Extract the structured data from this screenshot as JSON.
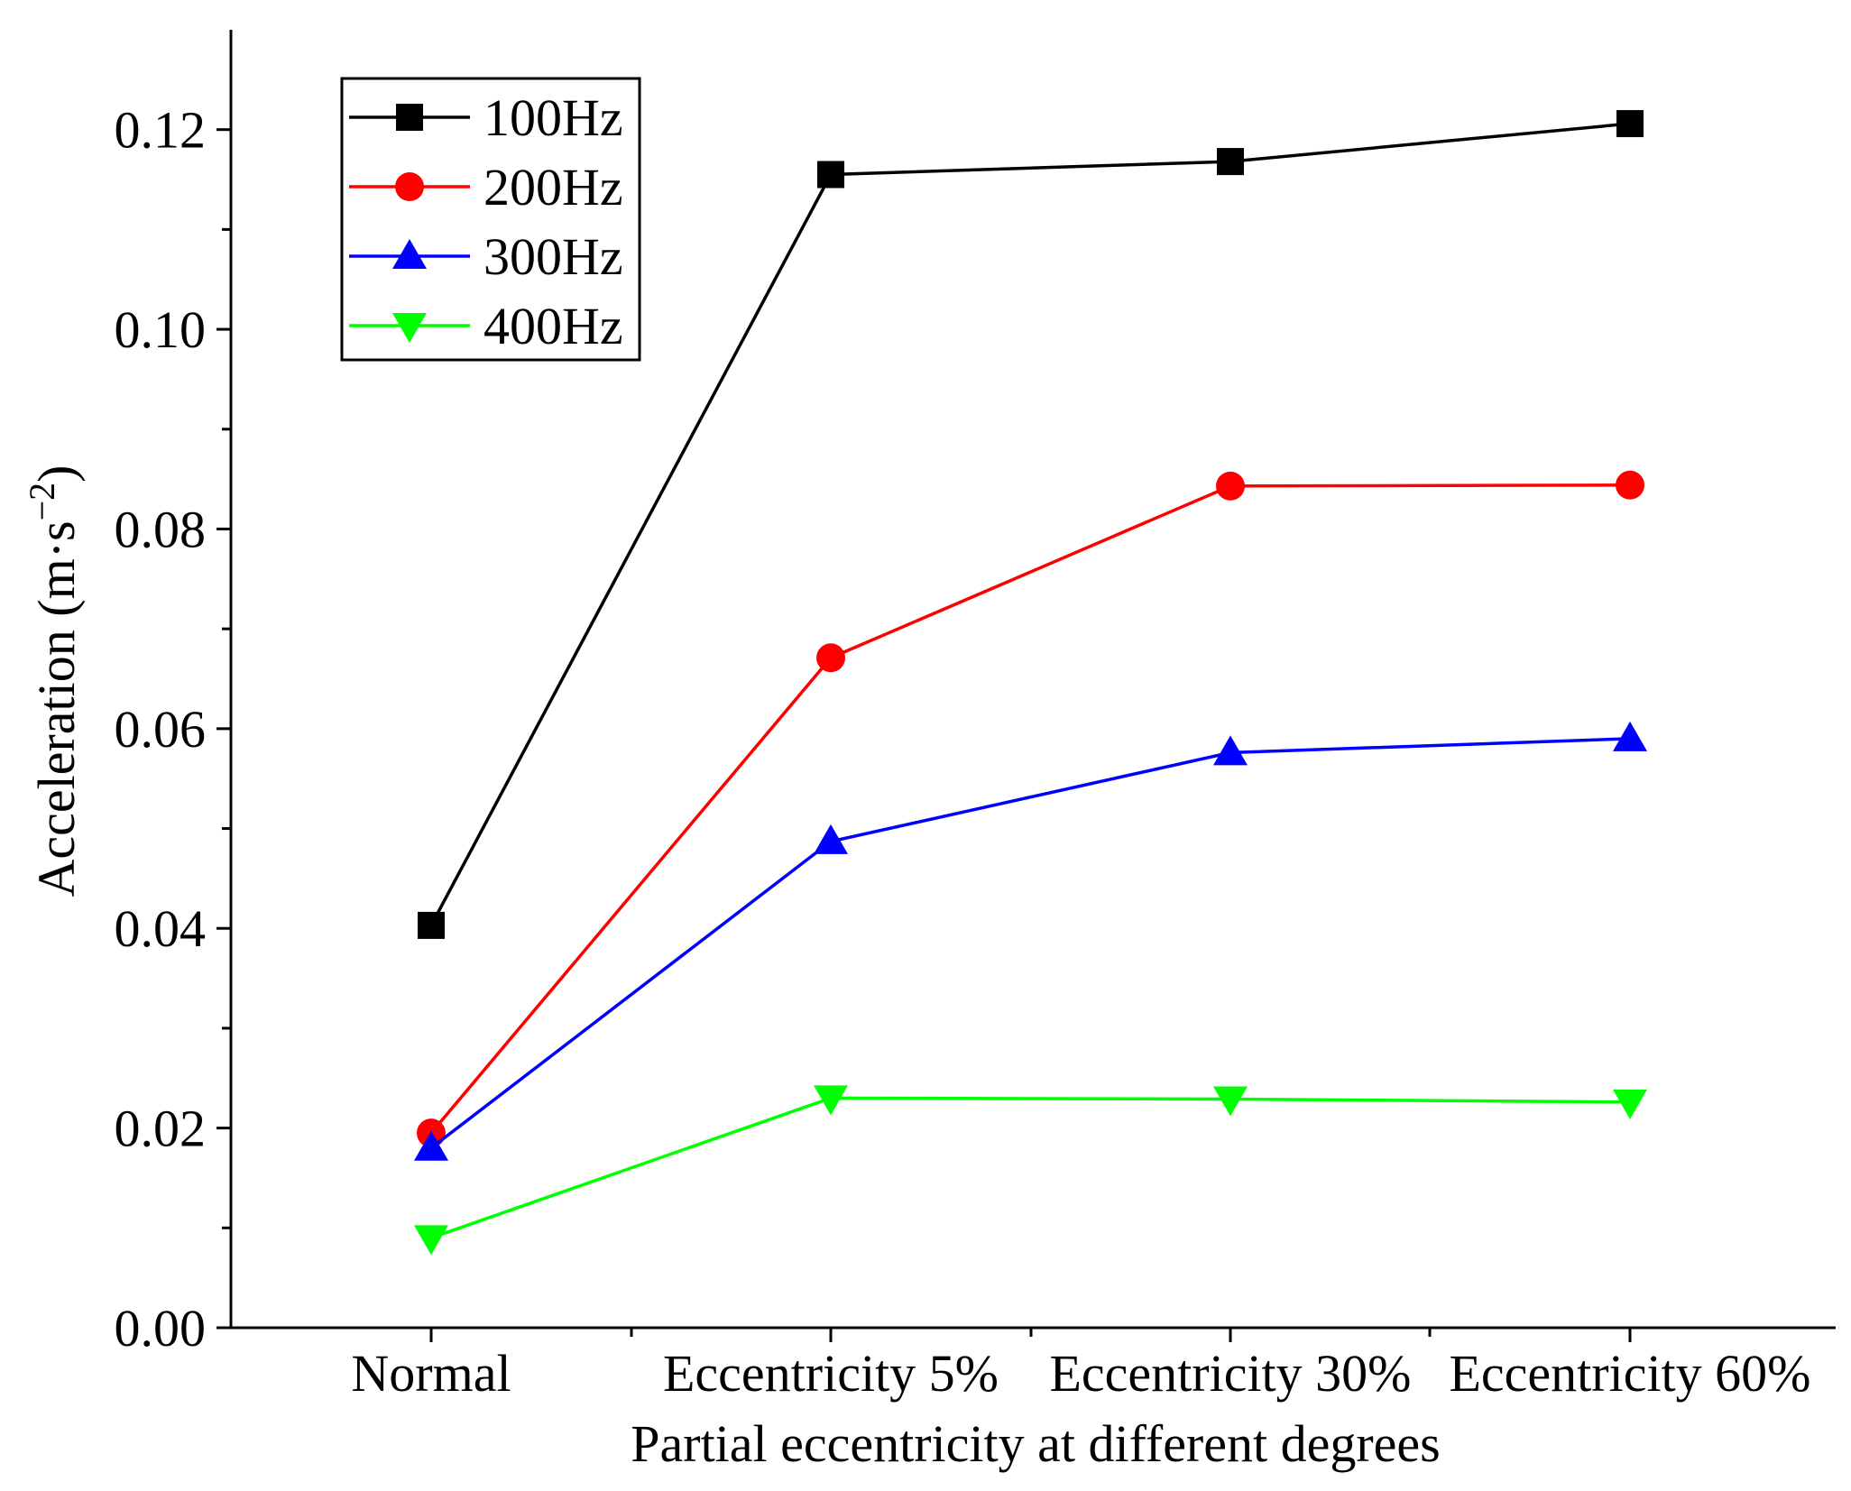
{
  "chart_data": {
    "type": "line",
    "title": "",
    "xlabel": "Partial eccentricity at different degrees",
    "ylabel": "Acceleration (m·s",
    "ylabel_unit_exponent": "−2",
    "ylabel_close": ")",
    "categories": [
      "Normal",
      "Eccentricity 5%",
      "Eccentricity 30%",
      "Eccentricity 60%"
    ],
    "ylim": [
      0,
      0.13
    ],
    "yticks": [
      "0.00",
      "0.02",
      "0.04",
      "0.06",
      "0.08",
      "0.10",
      "0.12"
    ],
    "legend_position": "top-left",
    "grid": false,
    "series": [
      {
        "name": "100Hz",
        "color": "#000000",
        "marker": "square",
        "values": [
          0.0403,
          0.1155,
          0.1168,
          0.1206
        ]
      },
      {
        "name": "200Hz",
        "color": "#ff0000",
        "marker": "circle",
        "values": [
          0.0195,
          0.0671,
          0.0843,
          0.0844
        ]
      },
      {
        "name": "300Hz",
        "color": "#0000ff",
        "marker": "triangle-up",
        "values": [
          0.018,
          0.0487,
          0.0576,
          0.059
        ]
      },
      {
        "name": "400Hz",
        "color": "#00ff00",
        "marker": "triangle-down",
        "values": [
          0.009,
          0.023,
          0.0229,
          0.0226
        ]
      }
    ]
  }
}
